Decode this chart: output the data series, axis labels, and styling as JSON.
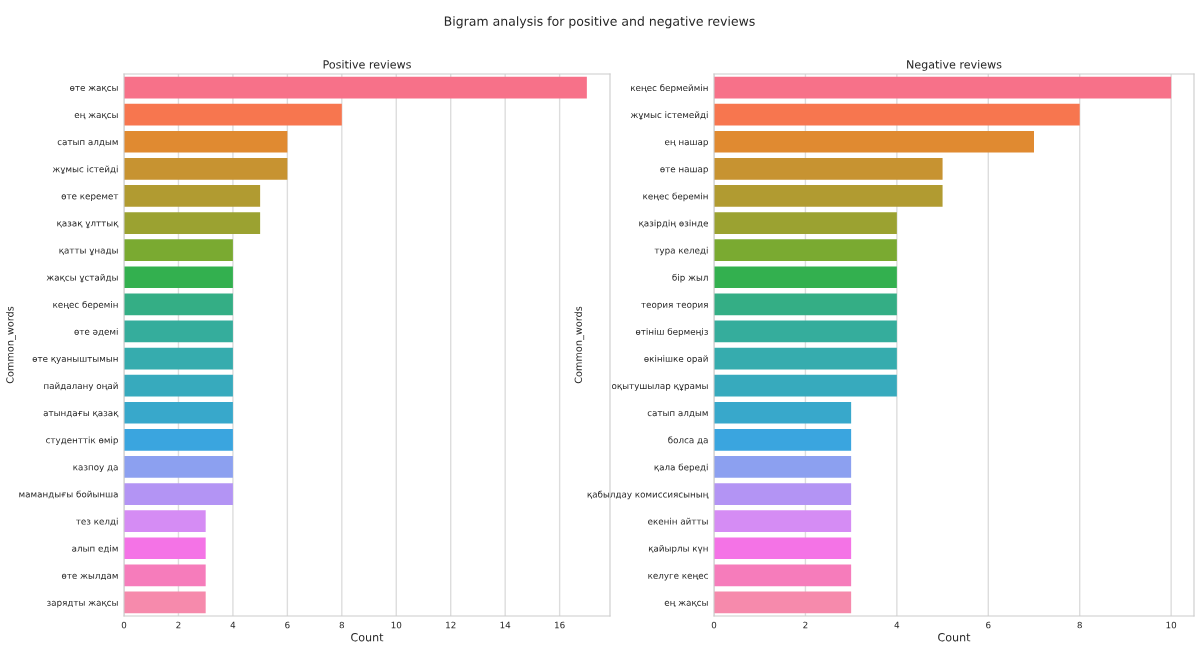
{
  "chart_data": [
    {
      "type": "bar",
      "orientation": "horizontal",
      "title": "Positive reviews",
      "xlabel": "Count",
      "ylabel": "Common_words",
      "annotations": [
        "Bigram analysis for positive and negative reviews"
      ],
      "categories": [
        "өте жақсы",
        "ең жақсы",
        "сатып алдым",
        "жұмыс істейді",
        "өте керемет",
        "қазақ ұлттық",
        "қатты ұнады",
        "жақсы ұстайды",
        "кеңес беремін",
        "өте әдемі",
        "өте қуаныштымын",
        "пайдалану оңай",
        "атындағы қазақ",
        "студенттік өмір",
        "казпоу да",
        "мамандығы бойынша",
        "тез келді",
        "алып едім",
        "өте жылдам",
        "зарядты жақсы"
      ],
      "values": [
        17,
        8,
        6,
        6,
        5,
        5,
        4,
        4,
        4,
        4,
        4,
        4,
        4,
        4,
        4,
        4,
        3,
        3,
        3,
        3
      ],
      "colors": [
        "#f77189",
        "#f7764f",
        "#e08a31",
        "#c79331",
        "#b19b31",
        "#9ba231",
        "#7aaa31",
        "#33b04f",
        "#34ae85",
        "#35ad9c",
        "#36acae",
        "#37aabd",
        "#38a8cb",
        "#3aa5df",
        "#8ca0f0",
        "#b394f4",
        "#d58cf4",
        "#f473e6",
        "#f67cbb",
        "#f68aac"
      ],
      "xlim": [
        0,
        17.85
      ],
      "xticks": [
        0,
        2,
        4,
        6,
        8,
        10,
        12,
        14,
        16
      ],
      "grid": "x",
      "legend": false
    },
    {
      "type": "bar",
      "orientation": "horizontal",
      "title": "Negative reviews",
      "xlabel": "Count",
      "ylabel": "Common_words",
      "categories": [
        "кеңес бермеймін",
        "жұмыс істемейді",
        "ең нашар",
        "өте нашар",
        "кеңес беремін",
        "қазірдің өзінде",
        "тура келеді",
        "бір жыл",
        "теория теория",
        "өтініш бермеңіз",
        "өкінішке орай",
        "оқытушылар құрамы",
        "сатып алдым",
        "болса да",
        "қала береді",
        "қабылдау комиссиясының",
        "екенін айтты",
        "қайырлы күн",
        "келуге кеңес",
        "ең жақсы"
      ],
      "values": [
        10,
        8,
        7,
        5,
        5,
        4,
        4,
        4,
        4,
        4,
        4,
        4,
        3,
        3,
        3,
        3,
        3,
        3,
        3,
        3
      ],
      "colors": [
        "#f77189",
        "#f7764f",
        "#e08a31",
        "#c79331",
        "#b19b31",
        "#9ba231",
        "#7aaa31",
        "#33b04f",
        "#34ae85",
        "#35ad9c",
        "#36acae",
        "#37aabd",
        "#38a8cb",
        "#3aa5df",
        "#8ca0f0",
        "#b394f4",
        "#d58cf4",
        "#f473e6",
        "#f67cbb",
        "#f68aac"
      ],
      "xlim": [
        0,
        10.5
      ],
      "xticks": [
        0,
        2,
        4,
        6,
        8,
        10
      ],
      "grid": "x",
      "legend": false
    }
  ]
}
